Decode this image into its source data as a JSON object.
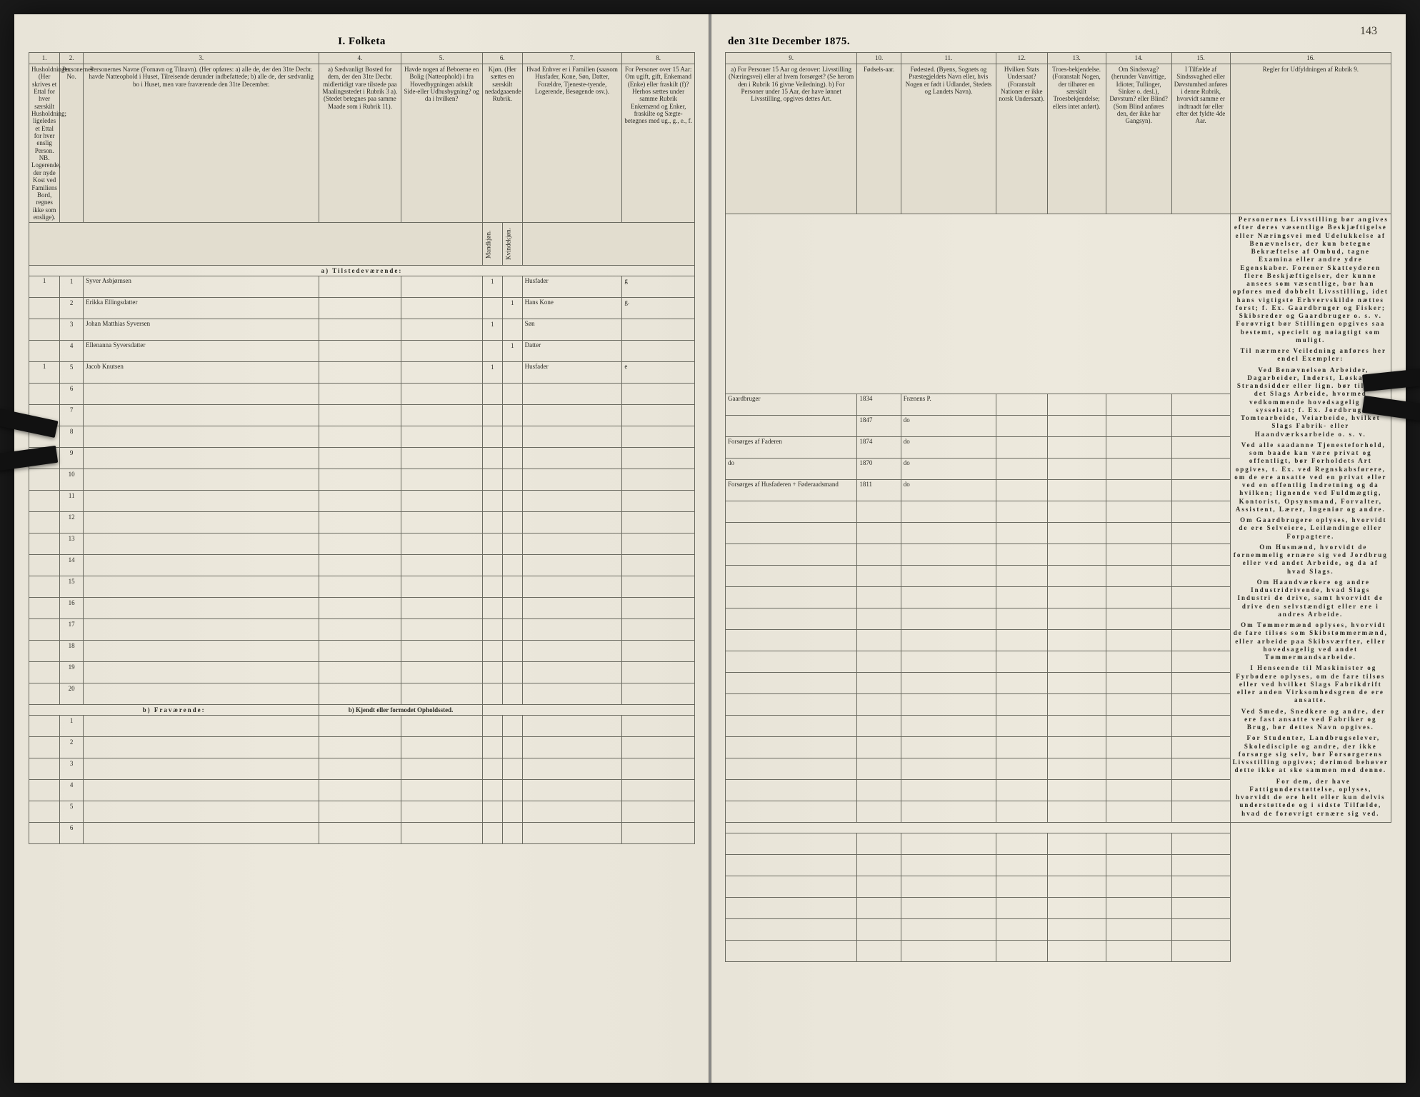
{
  "document": {
    "title_left": "I. Folketa",
    "title_right": "den 31te December 1875.",
    "page_number_handwritten": "143"
  },
  "columns_left": {
    "c1": {
      "num": "1.",
      "head": "Husholdninger.\n(Her skrives et Ettal for hver særskilt Husholdning; ligeledes et Ettal for hver enslig Person.\nNB. Logerende, der nyde Kost ved Familiens Bord, regnes ikke som enslige)."
    },
    "c2": {
      "num": "2.",
      "head": "Personernes No."
    },
    "c3": {
      "num": "3.",
      "head": "Personernes Navne (Fornavn og Tilnavn).\n(Her opføres:\na) alle de, der den 31te Decbr. havde Natteophold i Huset, Tilreisende derunder indbefattede;\nb) alle de, der sædvanlig bo i Huset, men vare fraværende den 31te December."
    },
    "c4": {
      "num": "4.",
      "head": "a) Sædvanligt Bosted for dem, der den 31te Decbr. midlertidigt vare tilstede paa Maalingsstedet i Rubrik 3 a).\n(Stedet betegnes paa samme Maade som i Rubrik 11)."
    },
    "c5": {
      "num": "5.",
      "head": "Havde nogen af Beboerne en Bolig (Natteophold) i fra Hovedbygningen adskilt Side-eller Udhusbygning? og da i hvilken?"
    },
    "c6": {
      "num": "6.",
      "head": "Kjøn.\n(Her sættes en særskilt nedadgaaende Rubrik.",
      "sub_m": "Mandkjøn.",
      "sub_k": "Kvindekjøn."
    },
    "c7": {
      "num": "7.",
      "head": "Hvad Enhver er i Familien\n(saasom Husfader, Kone, Søn, Datter, Forældre, Tjeneste-tyende, Logerende, Besøgende osv.)."
    },
    "c8": {
      "num": "8.",
      "head": "For Personer over 15 Aar: Om ugift, gift, Enkemand (Enke) eller fraskilt (f)?\nHerhos sættes under samme Rubrik Enkemænd og Enker, fraskilte og Sægte-betegnes med ug., g., e., f."
    }
  },
  "columns_right": {
    "c9": {
      "num": "9.",
      "head": "a) For Personer 15 Aar og derover: Livsstilling (Næringsvei) eller af hvem forsørget? (Se herom den i Rubrik 16 givne Veiledning).\nb) For Personer under 15 Aar, der have lønnet Livsstilling, opgives dettes Art."
    },
    "c10": {
      "num": "10.",
      "head": "Fødsels-aar."
    },
    "c11": {
      "num": "11.",
      "head": "Fødested.\n(Byens, Sognets og Præstegjeldets Navn eller, hvis Nogen er født i Udlandet, Stedets og Landets Navn)."
    },
    "c12": {
      "num": "12.",
      "head": "Hvilken Stats Undersaat?\n(Foranstalt Nationer er ikke norsk Undersaat)."
    },
    "c13": {
      "num": "13.",
      "head": "Troes-bekjendelse.\n(Foranstalt Nogen, der tilhører en særskilt Troesbekjendelse; ellers intet anført)."
    },
    "c14": {
      "num": "14.",
      "head": "Om Sindssvag? (herunder Vanvittige, Idioter, Tullinger, Sinker o. desl.), Døvstum? eller Blind?\n(Som Blind anføres den, der ikke har Gangsyn)."
    },
    "c15": {
      "num": "15.",
      "head": "I Tilfælde af Sindssvaghed eller Døvstumhed anføres i denne Rubrik, hvorvidt samme er indtraadt før eller efter det fyldte 4de Aar."
    },
    "c16": {
      "num": "16.",
      "head": "Regler for Udfyldningen af Rubrik 9."
    }
  },
  "sections": {
    "a_label": "a) Tilstedeværende:",
    "b_label": "b) Fraværende:",
    "b_col4": "b) Kjendt eller formodet Opholdssted."
  },
  "rows": [
    {
      "hh": "1",
      "no": "1",
      "name": "Syver Asbjørnsen",
      "m": "1",
      "k": "",
      "fam": "Husfader",
      "civ": "g",
      "occ": "Gaardbruger",
      "year": "1834",
      "place": "Frænens P."
    },
    {
      "hh": "",
      "no": "2",
      "name": "Erikka Ellingsdatter",
      "m": "",
      "k": "1",
      "fam": "Hans Kone",
      "civ": "g.",
      "occ": "",
      "year": "1847",
      "place": "do"
    },
    {
      "hh": "",
      "no": "3",
      "name": "Johan Matthias Syversen",
      "m": "1",
      "k": "",
      "fam": "Søn",
      "civ": "",
      "occ": "Forsørges af Faderen",
      "year": "1874",
      "place": "do"
    },
    {
      "hh": "",
      "no": "4",
      "name": "Ellenanna Syversdatter",
      "m": "",
      "k": "1",
      "fam": "Datter",
      "civ": "",
      "occ": "do",
      "year": "1870",
      "place": "do"
    },
    {
      "hh": "1",
      "no": "5",
      "name": "Jacob Knutsen",
      "m": "1",
      "k": "",
      "fam": "Husfader",
      "civ": "e",
      "occ": "Forsørges af Husfaderen + Føderaadsmand",
      "year": "1811",
      "place": "do"
    }
  ],
  "rules_text": [
    "Personernes Livsstilling bør angives efter deres væsentlige Beskjæftigelse eller Næringsvei med Udelukkelse af Benævnelser, der kun betegne Bekræftelse af Ombud, tagne Examina eller andre ydre Egenskaber. Forener Skatteyderen flere Beskjæftigelser, der kunne ansees som væsentlige, bør han opføres med dobbelt Livsstilling, idet hans vigtigste Erhvervskilde nættes forst; f. Ex. Gaardbruger og Fisker; Skibsreder og Gaardbruger o. s. v. Forøvrigt bør Stillingen opgives saa bestemt, specielt og nøiagtigt som muligt.",
    "Til nærmere Veiledning anføres her endel Exempler:",
    "Ved Benævnelsen Arbeider, Dagarbeider, Inderst, Løskari, Strandsidder eller lign. bør tilføies det Slags Arbeide, hvormed vedkommende hovedsagelig er sysselsat; f. Ex. Jordbrug, Tomtearbeide, Veiarbeide, hvilket Slags Fabrik- eller Haandværksarbeide o. s. v.",
    "Ved alle saadanne Tjenesteforhold, som baade kan være privat og offentligt, bør Forholdets Art opgives, t. Ex. ved Regnskabsførere, om de ere ansatte ved en privat eller ved en offentlig Indretning og da hvilken; lignende ved Fuldmægtig, Kontorist, Opsynsmand, Forvalter, Assistent, Lærer, Ingeniør og andre.",
    "Om Gaardbrugere oplyses, hvorvidt de ere Selveiere, Leilændinge eller Forpagtere.",
    "Om Husmænd, hvorvidt de fornemmelig ernære sig ved Jordbrug eller ved andet Arbeide, og da af hvad Slags.",
    "Om Haandværkere og andre Industridrivende, hvad Slags Industri de drive, samt hvorvidt de drive den selvstændigt eller ere i andres Arbeide.",
    "Om Tømmermænd oplyses, hvorvidt de fare tilsøs som Skibstømmermænd, eller arbeide paa Skibsværfter, eller hovedsagelig ved andet Tømmermandsarbeide.",
    "I Henseende til Maskinister og Fyrbødere oplyses, om de fare tilsøs eller ved hvilket Slags Fabrikdrift eller anden Virksomhedsgren de ere ansatte.",
    "Ved Smede, Snedkere og andre, der ere fast ansatte ved Fabriker og Brug, bør dettes Navn opgives.",
    "For Studenter, Landbrugselever, Skoledisciple og andre, der ikke forsørge sig selv, bør Forsørgerens Livsstilling opgives; derimod behøver dette ikke at ske sammen med denne.",
    "For dem, der have Fattigunderstøttelse, oplyses, hvorvidt de ere helt eller kun delvis understøttede og i sidste Tilfælde, hvad de forøvrigt ernære sig ved."
  ],
  "layout": {
    "left_colwidths": [
      34,
      26,
      260,
      90,
      90,
      22,
      22,
      110,
      80
    ],
    "right_colwidths": [
      180,
      60,
      130,
      70,
      80,
      90,
      80,
      220
    ],
    "row_count_a": 20,
    "row_count_b": 6
  },
  "colors": {
    "paper": "#e8e4d8",
    "ink": "#2a2a24",
    "rule": "#6a6a60",
    "hand": "#3a362c"
  }
}
